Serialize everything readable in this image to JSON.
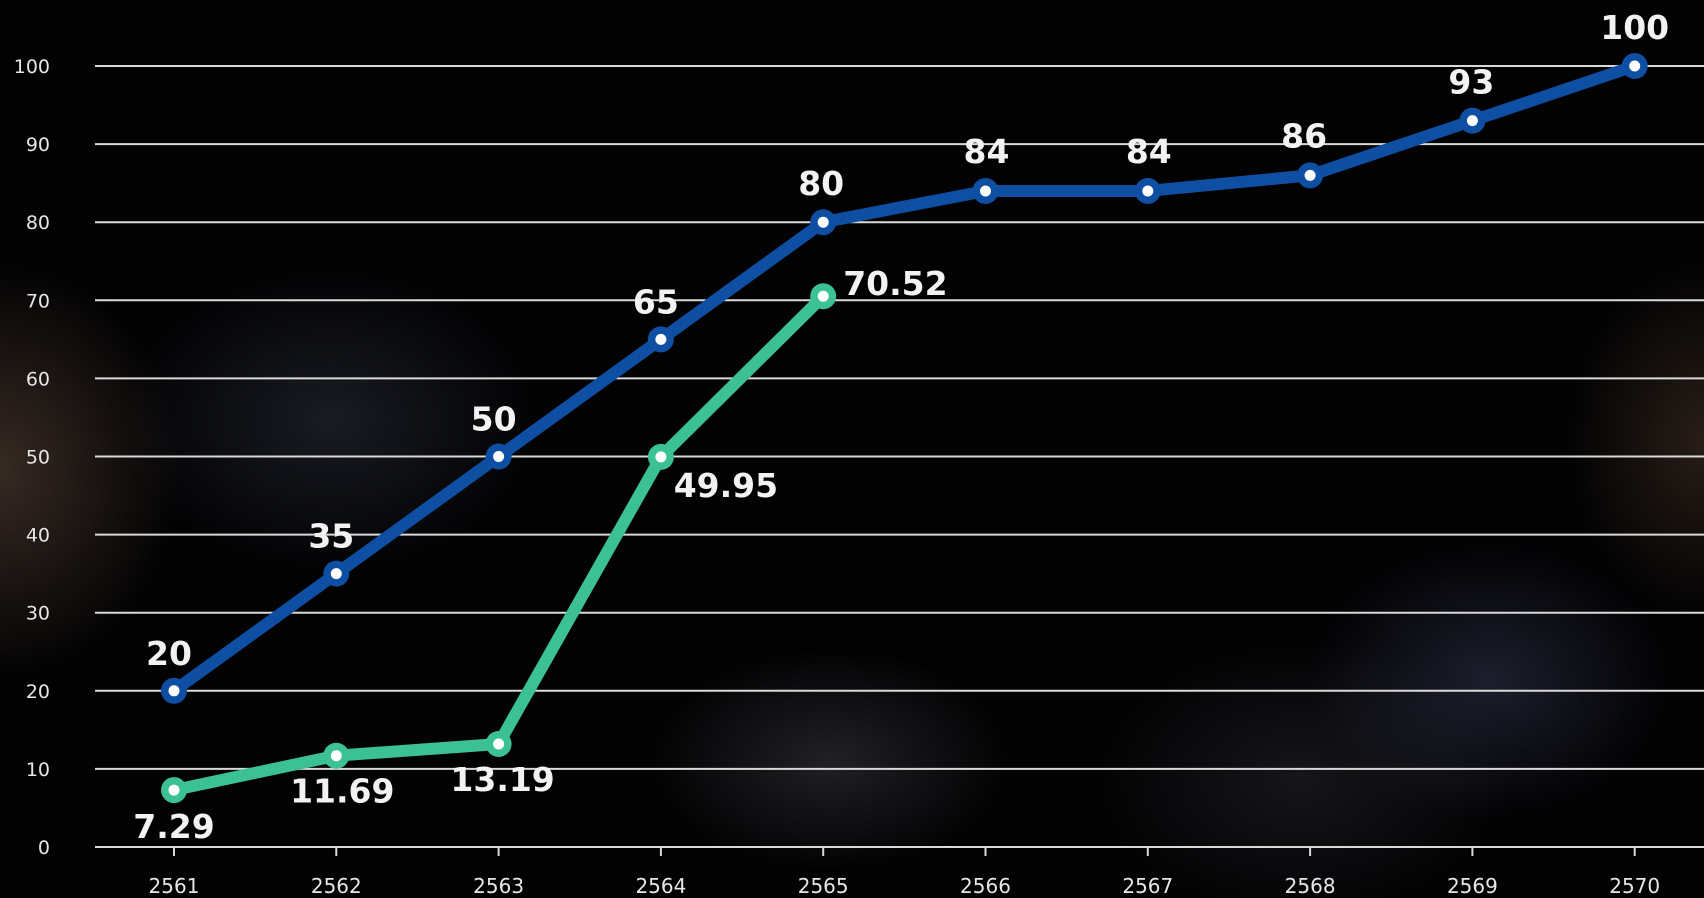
{
  "chart_data": {
    "type": "line",
    "x": [
      "2561",
      "2562",
      "2563",
      "2564",
      "2565",
      "2566",
      "2567",
      "2568",
      "2569",
      "2570"
    ],
    "ylim": [
      0,
      100
    ],
    "yticks": [
      "0",
      "10",
      "20",
      "30",
      "40",
      "50",
      "60",
      "70",
      "80",
      "90",
      "100"
    ],
    "grid": true,
    "series": [
      {
        "color": "#0f4fa3",
        "values": [
          20,
          35,
          50,
          65,
          80,
          84,
          84,
          86,
          93,
          100
        ],
        "labels": [
          "20",
          "35",
          "50",
          "65",
          "80",
          "84",
          "84",
          "86",
          "93",
          "100"
        ]
      },
      {
        "color": "#3cc195",
        "values": [
          7.29,
          11.69,
          13.19,
          49.95,
          70.52,
          null,
          null,
          null,
          null,
          null
        ],
        "labels": [
          "7.29",
          "11.69",
          "13.19",
          "49.95",
          "70.52"
        ]
      }
    ]
  }
}
